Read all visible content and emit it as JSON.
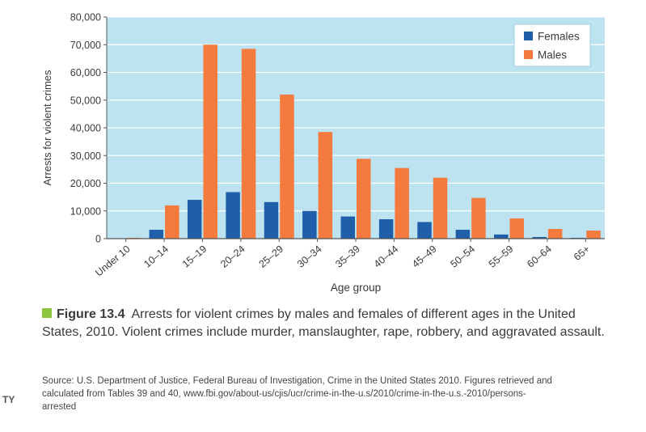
{
  "chart_data": {
    "type": "bar",
    "categories": [
      "Under 10",
      "10–14",
      "15–19",
      "20–24",
      "25–29",
      "30–34",
      "35–39",
      "40–44",
      "45–49",
      "50–54",
      "55–59",
      "60–64",
      "65+"
    ],
    "series": [
      {
        "name": "Females",
        "color": "#1f5ea8",
        "values": [
          50,
          3200,
          14000,
          16800,
          13200,
          10000,
          8000,
          7000,
          6000,
          3200,
          1500,
          600,
          300
        ]
      },
      {
        "name": "Males",
        "color": "#f47b3d",
        "values": [
          300,
          12000,
          70000,
          68500,
          52000,
          38500,
          28800,
          25500,
          22000,
          14700,
          7300,
          3500,
          2900
        ]
      }
    ],
    "ylim": [
      0,
      80000
    ],
    "yticks": [
      "0",
      "10,000",
      "20,000",
      "30,000",
      "40,000",
      "50,000",
      "60,000",
      "70,000",
      "80,000"
    ],
    "ylabel": "Arrests for violent crimes",
    "xlabel": "Age group",
    "legend": "top-right",
    "plot_background": "#bde3f0",
    "grid": true
  },
  "caption": {
    "figure_label": "Figure 13.4",
    "text": "Arrests for violent crimes by males and females of different ages in the United States, 2010. Violent crimes include murder, manslaughter, rape, robbery, and aggravated assault."
  },
  "source": "Source: U.S. Department of Justice, Federal Bureau of Investigation, Crime in the United States 2010. Figures retrieved and calculated from Tables 39 and 40, www.fbi.gov/about-us/cjis/ucr/crime-in-the-u.s/2010/crime-in-the-u.s.-2010/persons-arrested",
  "side_label": "TY"
}
